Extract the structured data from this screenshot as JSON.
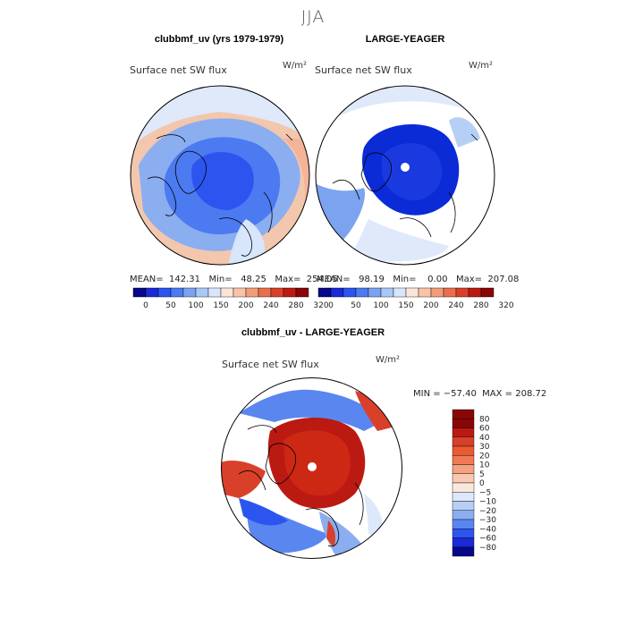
{
  "figure": {
    "season": "JJA"
  },
  "panels": [
    {
      "title": "clubbmf_uv (yrs 1979-1979)",
      "subtitle": "Surface net SW flux",
      "units": "W/m²",
      "stats_line": "MEAN=  142.31   Min=   48.25   Max=  254.05"
    },
    {
      "title": "LARGE-YEAGER",
      "subtitle": "Surface net SW flux",
      "units": "W/m²",
      "stats_line": "MEAN=   98.19   Min=    0.00   Max=  207.08"
    },
    {
      "title": "clubbmf_uv - LARGE-YEAGER",
      "subtitle": "Surface net SW flux",
      "units": "W/m²",
      "stats_line": "MIN = −57.40  MAX = 208.72"
    }
  ],
  "colorbars": {
    "abs_labels": [
      "0",
      "50",
      "100",
      "150",
      "200",
      "240",
      "280",
      "320"
    ],
    "abs_colors": [
      "#07078a",
      "#1a2ad6",
      "#2c55f0",
      "#4c7af0",
      "#7ba3f0",
      "#a9c8f5",
      "#d7e6fa",
      "#fbe4d8",
      "#f8c4a8",
      "#f29c78",
      "#ea6e4a",
      "#d9402a",
      "#bb1a12",
      "#8a0606"
    ],
    "diff_labels": [
      "80",
      "60",
      "40",
      "30",
      "20",
      "10",
      "5",
      "0",
      "−5",
      "−10",
      "−20",
      "−30",
      "−40",
      "−60",
      "−80"
    ],
    "diff_colors": [
      "#8a0606",
      "#bb1a12",
      "#d9402a",
      "#ea5a30",
      "#f07a55",
      "#f5a080",
      "#f8c8b0",
      "#fbe8dc",
      "#dde9fa",
      "#b6cff5",
      "#8aaef0",
      "#5a86f0",
      "#2c55f0",
      "#1a2ad6",
      "#07078a"
    ]
  }
}
